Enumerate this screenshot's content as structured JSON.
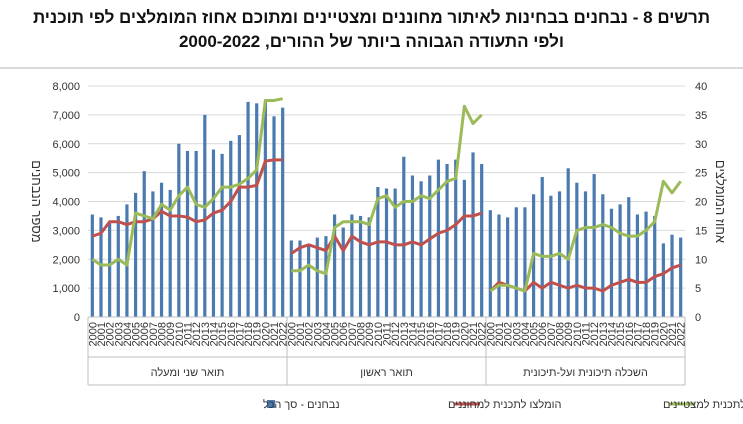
{
  "title_line1": "תרשים 8 - נבחנים בבחינות לאיתור מחוננים ומצטיינים ומתוכם אחוז המומלצים לפי תוכנית",
  "title_line2": "ולפי התעודה הגבוהה ביותר של ההורים, 2000-2022",
  "chart_data": {
    "type": "bar+line",
    "ylabel_left": "מספר הנבחנים",
    "ylabel_right": "אחוז המומלצים",
    "ylim_left": [
      0,
      8000
    ],
    "ylim_right": [
      0,
      40
    ],
    "yticks_left": [
      "0",
      "1,000",
      "2,000",
      "3,000",
      "4,000",
      "5,000",
      "6,000",
      "7,000",
      "8,000"
    ],
    "yticks_right": [
      "0",
      "5",
      "10",
      "15",
      "20",
      "25",
      "30",
      "35",
      "40"
    ],
    "years": [
      "2000",
      "2001",
      "2002",
      "2003",
      "2004",
      "2005",
      "2006",
      "2007",
      "2008",
      "2009",
      "2010",
      "2011",
      "2012",
      "2013",
      "2014",
      "2015",
      "2016",
      "2017",
      "2018",
      "2019",
      "2020",
      "2021",
      "2022"
    ],
    "grid": true,
    "legend_position": "bottom",
    "legend": [
      "נבחנים - סך הכל",
      "הומלצו לתכנית למחוננים",
      "הומלצו לתכנית למצטיינים"
    ],
    "colors": {
      "total": "#4a7ab0",
      "gifted": "#c0504d",
      "excellent": "#9bbb59"
    },
    "groups": [
      {
        "label": "תואר שני ומעלה",
        "total": [
          3550,
          3450,
          3250,
          3500,
          3900,
          4300,
          5050,
          4350,
          4650,
          4400,
          6000,
          5750,
          5750,
          7000,
          5800,
          5650,
          6100,
          6300,
          7450,
          7400,
          7450,
          6950,
          7250
        ],
        "gifted": [
          14,
          14.5,
          16.5,
          16.5,
          16,
          16.5,
          16.5,
          17,
          18.3,
          17.5,
          17.5,
          17.3,
          16.5,
          16.8,
          18,
          18.5,
          20,
          22.5,
          22.5,
          22.8,
          27,
          27.2,
          27.2
        ],
        "excellent": [
          10,
          9,
          9,
          10,
          9,
          18,
          17.5,
          17,
          19.5,
          18.5,
          21,
          22.5,
          19.5,
          19,
          20.5,
          22.5,
          22.5,
          23,
          24,
          25.5,
          37.5,
          37.5,
          37.8
        ]
      },
      {
        "label": "תואר ראשון",
        "total": [
          2650,
          2650,
          2500,
          2750,
          2800,
          3550,
          3100,
          3550,
          3500,
          3450,
          4500,
          4450,
          4450,
          5550,
          4900,
          4700,
          4900,
          5450,
          5300,
          5450,
          4750,
          5700,
          5300
        ],
        "gifted": [
          11,
          12,
          12.5,
          12,
          11.5,
          14,
          11.5,
          14,
          13,
          12.5,
          13,
          13,
          12.5,
          12.5,
          13,
          12.5,
          13.5,
          14.5,
          15,
          16,
          17.5,
          17.5,
          18
        ],
        "excellent": [
          8,
          8,
          9,
          8,
          7.5,
          15.5,
          16.5,
          16.5,
          16.5,
          16,
          20.5,
          21,
          19,
          20,
          20,
          21,
          20.5,
          22,
          23.5,
          24,
          36.5,
          33.5,
          35
        ]
      },
      {
        "label": "השכלה תיכונית ועל-תיכונית",
        "total": [
          3700,
          3550,
          3450,
          3800,
          3800,
          4250,
          4850,
          4200,
          4350,
          5150,
          4650,
          4350,
          4950,
          4250,
          3750,
          3900,
          4150,
          3550,
          3650,
          3500,
          2550,
          2850,
          2750
        ],
        "gifted": [
          4.5,
          6,
          5.5,
          5,
          4.5,
          6,
          5,
          6,
          5.5,
          5,
          5.5,
          5,
          5,
          4.5,
          5.5,
          6,
          6.5,
          6,
          6,
          7,
          7.5,
          8.5,
          9
        ],
        "excellent": [
          4.5,
          5.5,
          5.5,
          5,
          4.5,
          11,
          10.5,
          10.5,
          11,
          10,
          15,
          15.5,
          15.5,
          16,
          15.5,
          14.5,
          14,
          14,
          15,
          16.5,
          23.5,
          21.5,
          23.5
        ]
      }
    ]
  }
}
